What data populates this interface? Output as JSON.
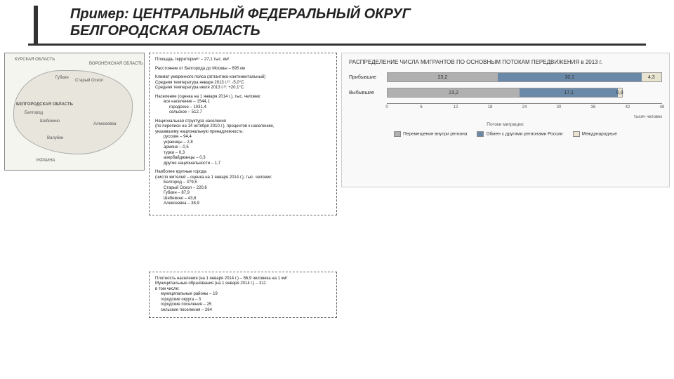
{
  "title_line1": "Пример: ЦЕНТРАЛЬНЫЙ ФЕДЕРАЛЬНЫЙ ОКРУГ",
  "title_line2": "БЕЛГОРОДСКАЯ ОБЛАСТЬ",
  "map": {
    "labels": {
      "kursk": "КУРСКАЯ ОБЛАСТЬ",
      "voronezh": "ВОРОНЕЖСКАЯ ОБЛАСТЬ",
      "belgorod_obl": "БЕЛГОРОДСКАЯ ОБЛАСТЬ",
      "ukraine": "УКРАИНА",
      "belgorod": "Белгород",
      "stary_oskol": "Старый Оскол",
      "gubkin": "Губкин",
      "shebekino": "Шебекино",
      "valuyki": "Валуйки",
      "alekseevka": "Алексеевка"
    }
  },
  "info": {
    "area": "Площадь территории¹⁾ – 27,1 тыс. км²",
    "distance": "Расстояние от Белгорода до Москвы – 695 км",
    "climate": "Климат умеренного пояса (атлантико-континентальный)",
    "temp_jan": "Средняя температура января 2013 г.²⁾: -5,0°С",
    "temp_jul": "Средняя температура июля 2013 г.²⁾: +20,1°С",
    "pop_head": "Население (оценка на 1 января 2014 г.), тыс. человек:",
    "pop_all": "все население – 1544,1",
    "pop_urban": "городское – 1031,4",
    "pop_rural": "сельское – 512,7",
    "nat_head": "Национальная структура населения",
    "nat_sub1": "(по переписи на 14 октября 2010 г.), процентов к населению,",
    "nat_sub2": "указавшему национальную принадлежность:",
    "nat_rus": "русские – 94,4",
    "nat_ukr": "украинцы – 2,8",
    "nat_arm": "армяне – 0,5",
    "nat_tur": "турки – 0,3",
    "nat_aze": "азербайджанцы – 0,3",
    "nat_oth": "другие национальности – 1,7",
    "cities_head": "Наиболее крупные города",
    "cities_sub": "(число жителей – оценка на 1 января 2014 г.), тыс. человек:",
    "c1": "Белгород – 379,5",
    "c2": "Старый Оскол – 220,6",
    "c3": "Губкин – 87,9",
    "c4": "Шебекино – 43,6",
    "c5": "Алексеевка – 38,9"
  },
  "footer": {
    "density": "Плотность населения (на 1 января 2014 г.) – 56,9 человека на 1 км²",
    "munic": "Муниципальные образования (на 1 января 2014 г.) – 311",
    "incl": "в том числе:",
    "m1": "муниципальные районы – 19",
    "m2": "городские округа – 3",
    "m3": "городские поселения – 25",
    "m4": "сельские поселения – 264"
  },
  "chart": {
    "title": "РАСПРЕДЕЛЕНИЕ ЧИСЛА МИГРАНТОВ ПО ОСНОВНЫМ ПОТОКАМ ПЕРЕДВИЖЕНИЯ в 2013 г.",
    "rows": [
      {
        "label": "Прибывшие",
        "segs": [
          {
            "v": 23.2,
            "color": "#b0b0b0"
          },
          {
            "v": 30.1,
            "color": "#6a88a8"
          },
          {
            "v": 4.3,
            "color": "#e8e4d0"
          }
        ]
      },
      {
        "label": "Выбывшие",
        "segs": [
          {
            "v": 23.2,
            "color": "#b0b0b0"
          },
          {
            "v": 17.1,
            "color": "#6a88a8"
          },
          {
            "v": 0.8,
            "color": "#e8e4d0"
          }
        ]
      }
    ],
    "xmax": 48,
    "ticks": [
      0,
      6,
      12,
      18,
      24,
      30,
      36,
      42,
      48
    ],
    "axis_unit": "тысяч человек",
    "potoki": "Потоки миграции:",
    "legend": [
      {
        "label": "Перемещения внутри региона",
        "color": "#b0b0b0"
      },
      {
        "label": "Обмен с другими регионами России",
        "color": "#6a88a8"
      },
      {
        "label": "Международные",
        "color": "#e8e4d0"
      }
    ]
  }
}
